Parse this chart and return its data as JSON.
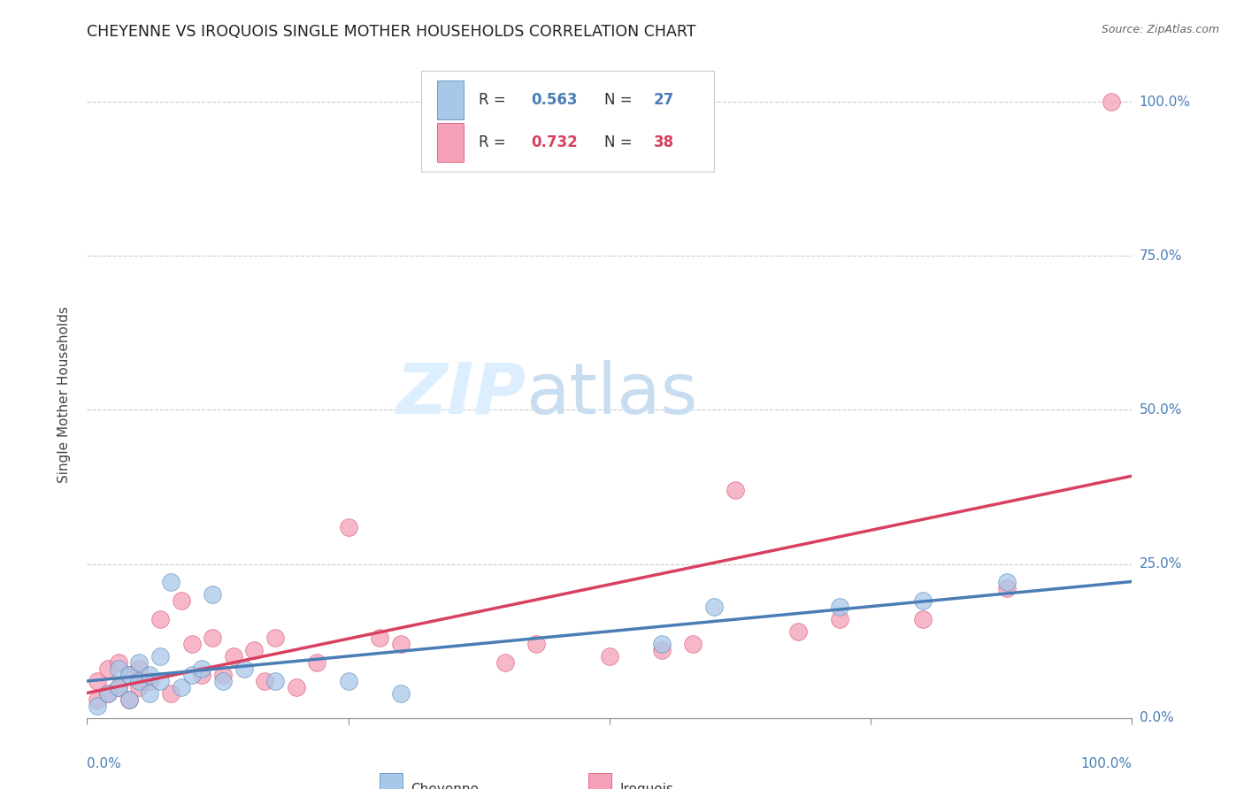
{
  "title": "CHEYENNE VS IROQUOIS SINGLE MOTHER HOUSEHOLDS CORRELATION CHART",
  "source": "Source: ZipAtlas.com",
  "ylabel": "Single Mother Households",
  "ytick_labels": [
    "0.0%",
    "25.0%",
    "50.0%",
    "75.0%",
    "100.0%"
  ],
  "ytick_values": [
    0.0,
    0.25,
    0.5,
    0.75,
    1.0
  ],
  "xtick_labels": [
    "0.0%",
    "100.0%"
  ],
  "xlim": [
    0.0,
    1.0
  ],
  "ylim": [
    0.0,
    1.05
  ],
  "cheyenne_color": "#a8c8e8",
  "iroquois_color": "#f4a0b8",
  "cheyenne_line_color": "#4a7db5",
  "iroquois_line_color": "#d94060",
  "label_color": "#4a7db5",
  "grid_color": "#cccccc",
  "background_color": "#ffffff",
  "watermark_color": "#ddeeff",
  "legend_R_cheyenne": "0.563",
  "legend_N_cheyenne": "27",
  "legend_R_iroquois": "0.732",
  "legend_N_iroquois": "38",
  "cheyenne_x": [
    0.01,
    0.02,
    0.03,
    0.03,
    0.04,
    0.04,
    0.05,
    0.05,
    0.06,
    0.06,
    0.07,
    0.07,
    0.08,
    0.09,
    0.1,
    0.11,
    0.12,
    0.13,
    0.15,
    0.18,
    0.25,
    0.3,
    0.55,
    0.6,
    0.72,
    0.8,
    0.88
  ],
  "cheyenne_y": [
    0.02,
    0.04,
    0.05,
    0.08,
    0.03,
    0.07,
    0.06,
    0.09,
    0.04,
    0.07,
    0.06,
    0.1,
    0.22,
    0.05,
    0.07,
    0.08,
    0.2,
    0.06,
    0.08,
    0.06,
    0.06,
    0.04,
    0.12,
    0.18,
    0.18,
    0.19,
    0.22
  ],
  "iroquois_x": [
    0.01,
    0.01,
    0.02,
    0.02,
    0.03,
    0.03,
    0.04,
    0.04,
    0.05,
    0.05,
    0.06,
    0.07,
    0.08,
    0.09,
    0.1,
    0.11,
    0.12,
    0.13,
    0.14,
    0.16,
    0.17,
    0.18,
    0.2,
    0.22,
    0.25,
    0.28,
    0.3,
    0.4,
    0.43,
    0.5,
    0.55,
    0.58,
    0.62,
    0.68,
    0.72,
    0.8,
    0.88,
    0.98
  ],
  "iroquois_y": [
    0.03,
    0.06,
    0.04,
    0.08,
    0.05,
    0.09,
    0.03,
    0.07,
    0.05,
    0.08,
    0.06,
    0.16,
    0.04,
    0.19,
    0.12,
    0.07,
    0.13,
    0.07,
    0.1,
    0.11,
    0.06,
    0.13,
    0.05,
    0.09,
    0.31,
    0.13,
    0.12,
    0.09,
    0.12,
    0.1,
    0.11,
    0.12,
    0.37,
    0.14,
    0.16,
    0.16,
    0.21,
    1.0
  ]
}
